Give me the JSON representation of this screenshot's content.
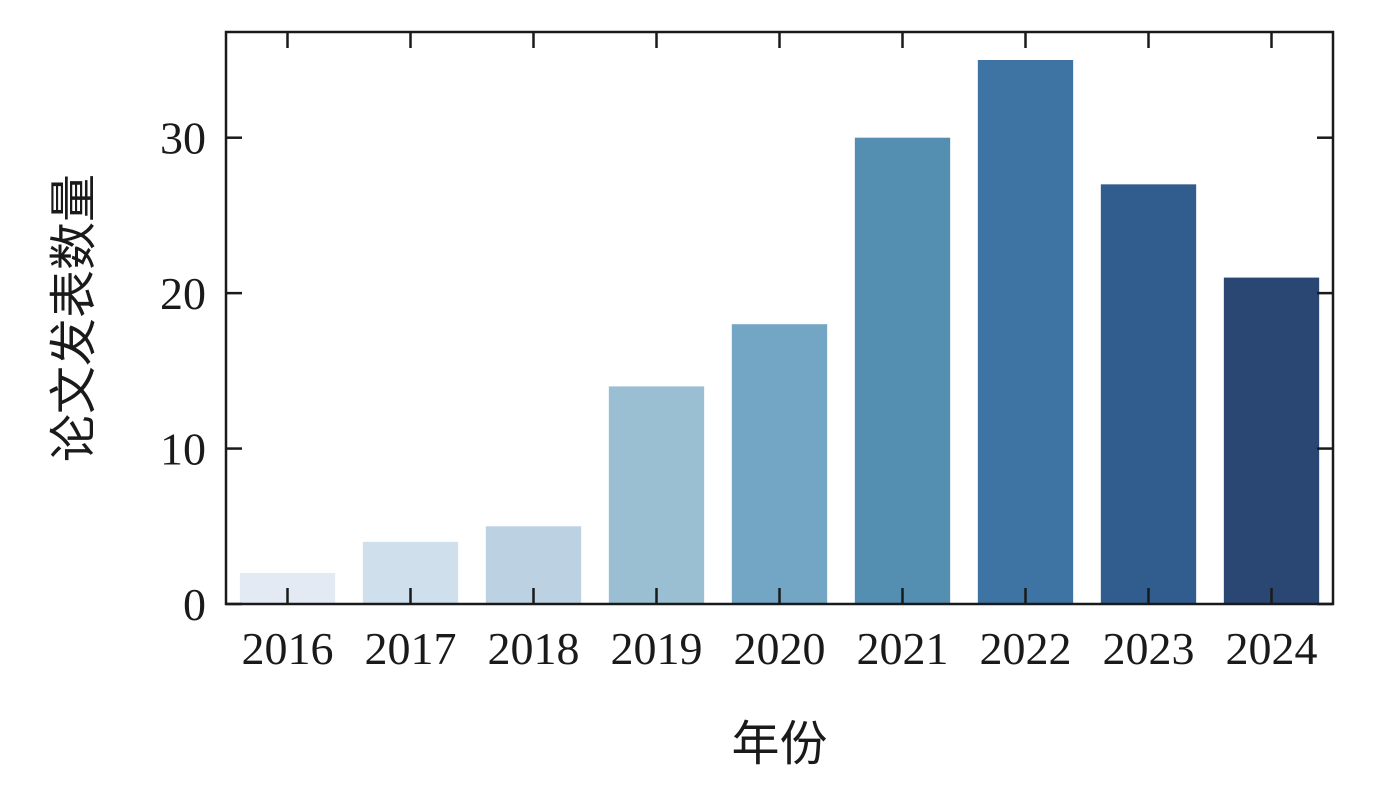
{
  "chart_data": {
    "type": "bar",
    "title": "",
    "xlabel": "年份",
    "ylabel": "论文发表数量",
    "categories": [
      "2016",
      "2017",
      "2018",
      "2019",
      "2020",
      "2021",
      "2022",
      "2023",
      "2024"
    ],
    "values": [
      2,
      4,
      5,
      14,
      18,
      30,
      35,
      27,
      21
    ],
    "colors": [
      "#e3eaf4",
      "#d0dfec",
      "#bcd1e1",
      "#9bbfd2",
      "#72a6c4",
      "#548eb1",
      "#3e74a3",
      "#315d8e",
      "#2a4673"
    ],
    "ylim": [
      0,
      36.8
    ],
    "yticks": [
      0,
      10,
      20,
      30
    ],
    "grid": false,
    "legend": "none"
  }
}
